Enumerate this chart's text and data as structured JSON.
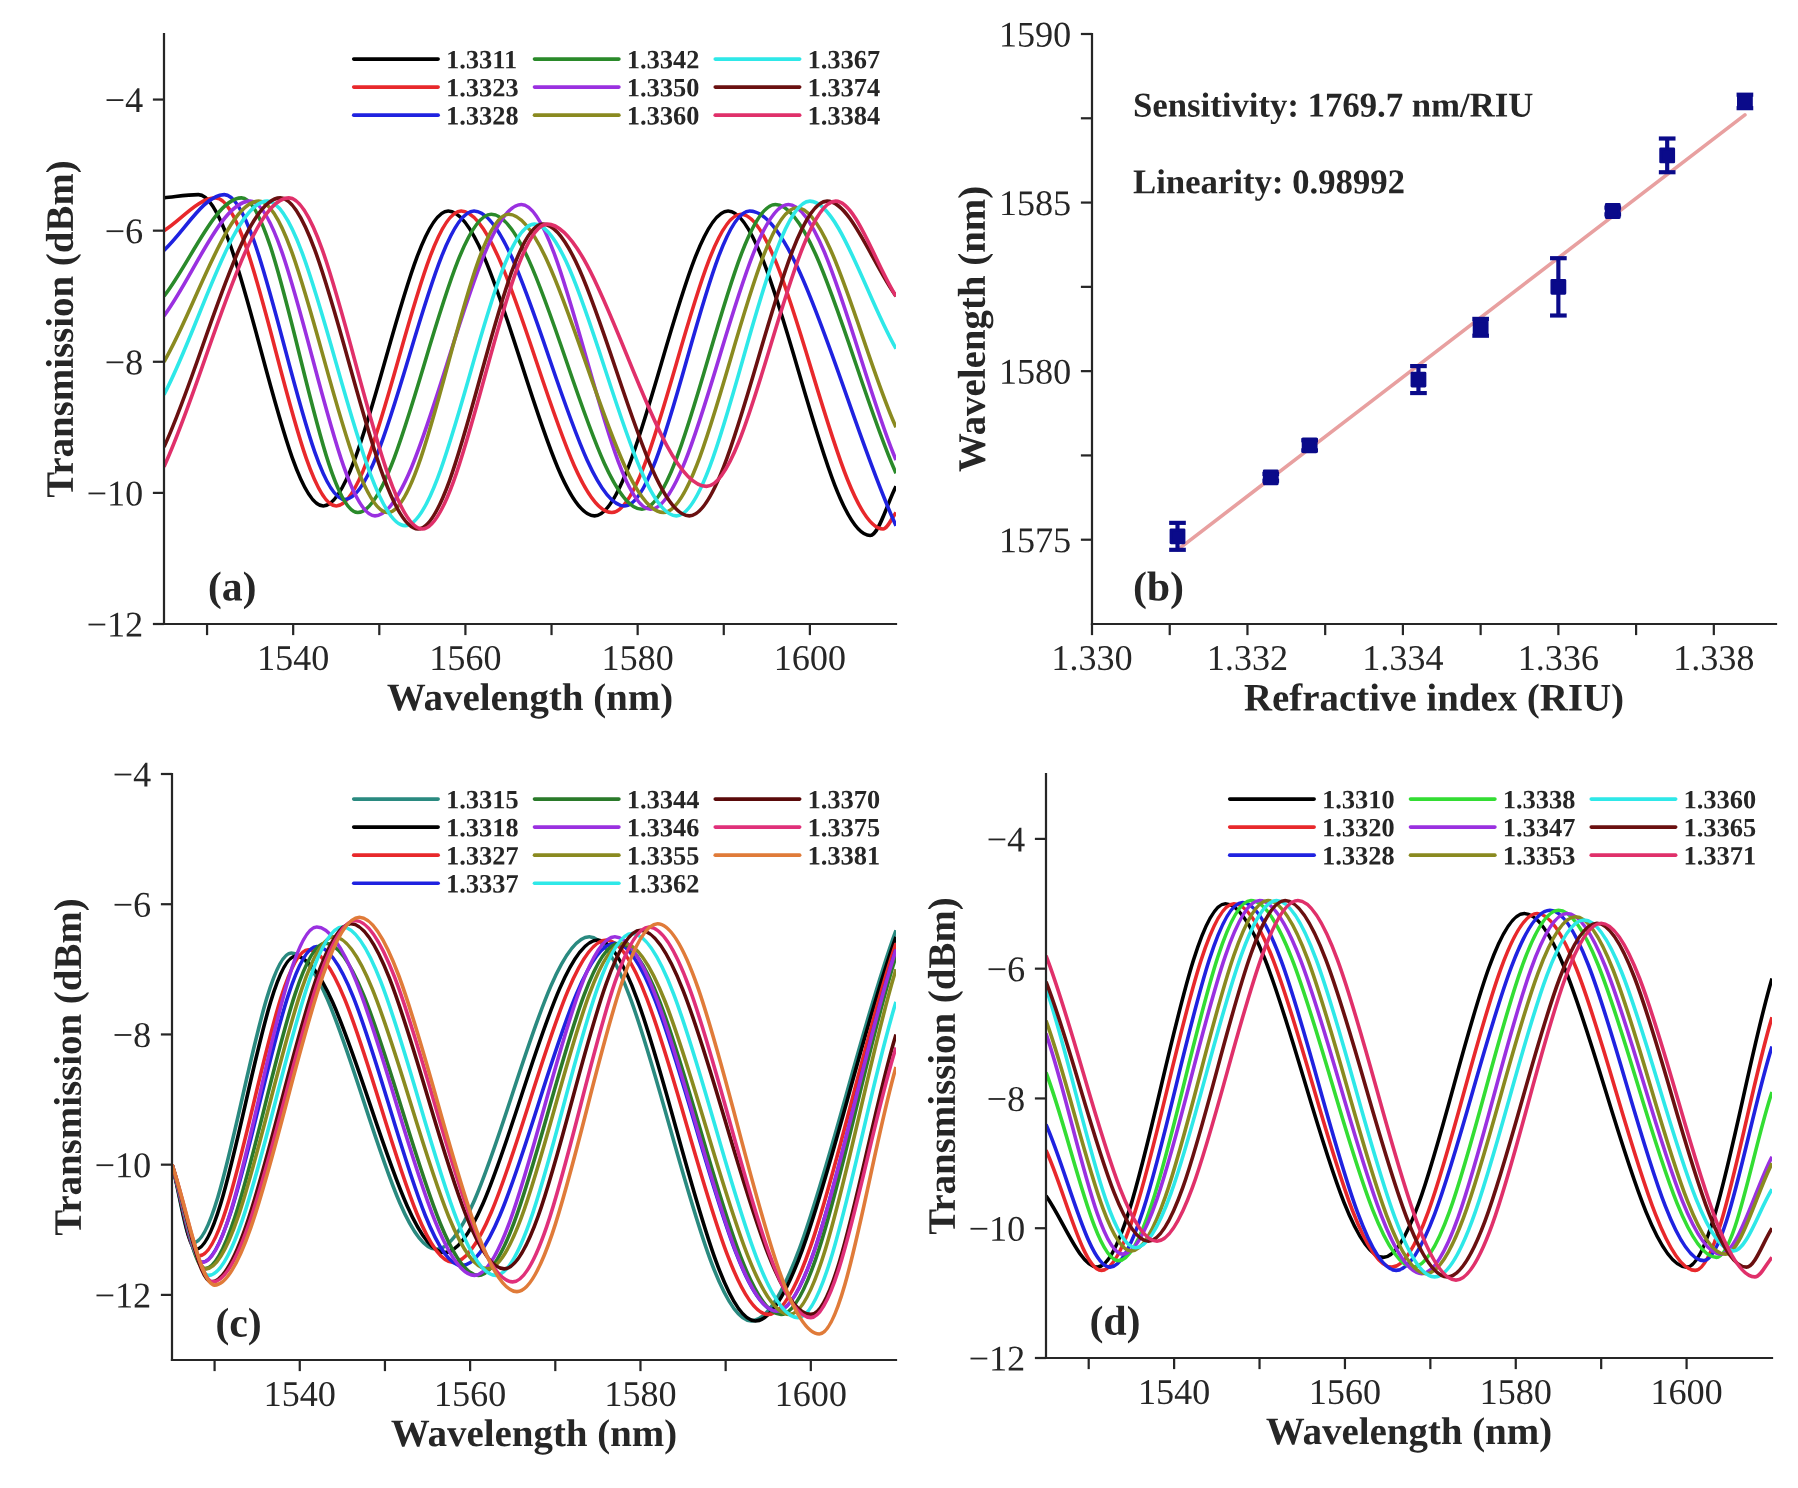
{
  "chart_data": [
    {
      "type": "line",
      "xlabel": "Wavelength (nm)",
      "ylabel": "Transmission (dBm)",
      "xlim": [
        1525,
        1610
      ],
      "ylim": [
        -12,
        -3
      ],
      "xticks": [
        {
          "value": 1530,
          "label": null
        },
        1540,
        {
          "value": 1550,
          "label": null
        },
        1560,
        {
          "value": 1570,
          "label": null
        },
        1580,
        {
          "value": 1590,
          "label": null
        },
        1600
      ],
      "yticks": [
        -12,
        -10,
        -8,
        -6,
        -4
      ],
      "legend": "top right",
      "annotations": [
        "(a)"
      ],
      "series": [
        {
          "name": "1.3311",
          "color": "#000000",
          "x": [
            1525,
            1529,
            1543.5,
            1558,
            1575,
            1590.5,
            1607,
            1610
          ],
          "values": [
            -5.5,
            -5.45,
            -10.2,
            -5.7,
            -10.35,
            -5.7,
            -10.65,
            -9.9
          ]
        },
        {
          "name": "1.3323",
          "color": "#e8282b",
          "x": [
            1525,
            1531,
            1545,
            1559.5,
            1577,
            1592,
            1608.5,
            1610
          ],
          "values": [
            -6.0,
            -5.5,
            -10.2,
            -5.7,
            -10.3,
            -5.75,
            -10.55,
            -10.3
          ]
        },
        {
          "name": "1.3328",
          "color": "#1f22e0",
          "x": [
            1525,
            1532,
            1546,
            1561,
            1578.5,
            1593,
            1610
          ],
          "values": [
            -6.3,
            -5.45,
            -10.1,
            -5.7,
            -10.2,
            -5.7,
            -10.5
          ]
        },
        {
          "name": "1.3342",
          "color": "#2a8a2a",
          "x": [
            1525,
            1534,
            1547.5,
            1563,
            1580.5,
            1596,
            1610
          ],
          "values": [
            -7.0,
            -5.5,
            -10.3,
            -5.75,
            -10.25,
            -5.6,
            -9.7
          ]
        },
        {
          "name": "1.3350",
          "color": "#9a30e0",
          "x": [
            1525,
            1535,
            1549.5,
            1566.5,
            1581.5,
            1597.5,
            1610
          ],
          "values": [
            -7.3,
            -5.55,
            -10.35,
            -5.6,
            -10.25,
            -5.6,
            -9.5
          ]
        },
        {
          "name": "1.3360",
          "color": "#8a8a20",
          "x": [
            1525,
            1536,
            1551,
            1565,
            1583,
            1598.5,
            1610
          ],
          "values": [
            -8.0,
            -5.55,
            -10.3,
            -5.75,
            -10.3,
            -5.65,
            -9.0
          ]
        },
        {
          "name": "1.3367",
          "color": "#2ee8e8",
          "x": [
            1525,
            1537,
            1553,
            1568,
            1584.5,
            1600,
            1610
          ],
          "values": [
            -8.5,
            -5.55,
            -10.5,
            -5.9,
            -10.35,
            -5.55,
            -7.8
          ]
        },
        {
          "name": "1.3374",
          "color": "#6a1010",
          "x": [
            1525,
            1538.5,
            1554.5,
            1569,
            1586,
            1602,
            1610
          ],
          "values": [
            -9.3,
            -5.5,
            -10.55,
            -5.9,
            -10.35,
            -5.55,
            -7.0
          ]
        },
        {
          "name": "1.3384",
          "color": "#e0306a",
          "x": [
            1525,
            1539.5,
            1555,
            1569.5,
            1588,
            1603,
            1610
          ],
          "values": [
            -9.6,
            -5.5,
            -10.55,
            -5.9,
            -9.9,
            -5.55,
            -7.0
          ]
        }
      ]
    },
    {
      "type": "scatter",
      "xlabel": "Refractive index (RIU)",
      "ylabel": "Wavelength (nm)",
      "xlim": [
        1.33,
        1.3388
      ],
      "ylim": [
        1572.5,
        1590
      ],
      "xticks": [
        {
          "value": 1.33,
          "label": "1.330"
        },
        {
          "value": 1.331,
          "label": null
        },
        {
          "value": 1.332,
          "label": "1.332"
        },
        {
          "value": 1.333,
          "label": null
        },
        {
          "value": 1.334,
          "label": "1.334"
        },
        {
          "value": 1.335,
          "label": null
        },
        {
          "value": 1.336,
          "label": "1.336"
        },
        {
          "value": 1.337,
          "label": null
        },
        {
          "value": 1.338,
          "label": "1.338"
        }
      ],
      "yticks": [
        1575,
        {
          "value": 1577.5,
          "label": null
        },
        1580,
        {
          "value": 1582.5,
          "label": null
        },
        1585,
        {
          "value": 1587.5,
          "label": null
        },
        1590
      ],
      "annotations": [
        "Sensitivity: 1769.7 nm/RIU",
        "Linearity: 0.98992",
        "(b)"
      ],
      "series": [
        {
          "type": "line",
          "color": "#e8a0a0",
          "x": [
            1.3311,
            1.3384
          ],
          "values": [
            1574.7,
            1587.6
          ]
        },
        {
          "type": "scatter",
          "color": "#0a0a8a",
          "marker": "square",
          "x": [
            1.3311,
            1.3323,
            1.3328,
            1.3342,
            1.335,
            1.336,
            1.3367,
            1.3374,
            1.3384
          ],
          "values": [
            1575.1,
            1576.85,
            1577.8,
            1579.75,
            1581.3,
            1582.5,
            1584.75,
            1586.4,
            1588.0
          ],
          "errors": [
            0.4,
            0.1,
            0.15,
            0.4,
            0.25,
            0.85,
            0.1,
            0.5,
            0.2
          ]
        }
      ]
    },
    {
      "type": "line",
      "xlabel": "Wavelength (nm)",
      "ylabel": "Transmission (dBm)",
      "xlim": [
        1525,
        1610
      ],
      "ylim": [
        -13,
        -4
      ],
      "xticks": [
        {
          "value": 1530,
          "label": null
        },
        1540,
        {
          "value": 1550,
          "label": null
        },
        1560,
        {
          "value": 1570,
          "label": null
        },
        1580,
        {
          "value": 1590,
          "label": null
        },
        1600
      ],
      "yticks": [
        -12,
        -10,
        -8,
        -6,
        -4
      ],
      "legend": "top right",
      "annotations": [
        "(c)"
      ],
      "series": [
        {
          "name": "1.3315",
          "color": "#2a8a80",
          "x": [
            1525,
            1527.5,
            1539,
            1556,
            1574,
            1593,
            1610
          ],
          "values": [
            -10.0,
            -11.2,
            -6.75,
            -11.3,
            -6.5,
            -12.4,
            -6.4
          ]
        },
        {
          "name": "1.3318",
          "color": "#000000",
          "x": [
            1525,
            1527.8,
            1539.5,
            1557,
            1575,
            1593.5,
            1610
          ],
          "values": [
            -10.0,
            -11.3,
            -6.8,
            -11.35,
            -6.55,
            -12.4,
            -6.5
          ]
        },
        {
          "name": "1.3327",
          "color": "#e8282b",
          "x": [
            1525,
            1528.2,
            1541,
            1558,
            1576,
            1595,
            1610
          ],
          "values": [
            -10.0,
            -11.4,
            -6.7,
            -11.5,
            -6.55,
            -12.3,
            -6.6
          ]
        },
        {
          "name": "1.3337",
          "color": "#1f22e0",
          "x": [
            1525,
            1528.5,
            1542,
            1559,
            1577,
            1596,
            1610
          ],
          "values": [
            -10.0,
            -11.5,
            -6.65,
            -11.55,
            -6.6,
            -12.25,
            -6.7
          ]
        },
        {
          "name": "1.3344",
          "color": "#2a7a2a",
          "x": [
            1525,
            1528.8,
            1543,
            1561,
            1577.5,
            1596.5,
            1610
          ],
          "values": [
            -10.0,
            -11.6,
            -6.6,
            -11.7,
            -6.6,
            -12.3,
            -6.8
          ]
        },
        {
          "name": "1.3346",
          "color": "#9a30e0",
          "x": [
            1525,
            1528.6,
            1542,
            1560.5,
            1577,
            1596,
            1610
          ],
          "values": [
            -10.0,
            -11.5,
            -6.35,
            -11.7,
            -6.5,
            -12.25,
            -6.7
          ]
        },
        {
          "name": "1.3355",
          "color": "#8a8a20",
          "x": [
            1525,
            1529,
            1544,
            1562,
            1578,
            1597.5,
            1610
          ],
          "values": [
            -10.0,
            -11.6,
            -6.5,
            -11.6,
            -6.6,
            -12.3,
            -7.0
          ]
        },
        {
          "name": "1.3362",
          "color": "#2ee8e8",
          "x": [
            1525,
            1529.3,
            1545,
            1563,
            1579,
            1598.5,
            1610
          ],
          "values": [
            -10.0,
            -11.7,
            -6.35,
            -11.7,
            -6.45,
            -12.35,
            -7.5
          ]
        },
        {
          "name": "1.3370",
          "color": "#5a0a0a",
          "x": [
            1525,
            1529.6,
            1546,
            1564,
            1580,
            1600,
            1610
          ],
          "values": [
            -10.0,
            -11.8,
            -6.3,
            -11.6,
            -6.4,
            -12.3,
            -8.0
          ]
        },
        {
          "name": "1.3375",
          "color": "#e0307a",
          "x": [
            1525,
            1529.8,
            1546.5,
            1565,
            1581,
            1600,
            1610
          ],
          "values": [
            -10.0,
            -11.8,
            -6.25,
            -11.8,
            -6.35,
            -12.35,
            -8.2
          ]
        },
        {
          "name": "1.3381",
          "color": "#e07b39",
          "x": [
            1525,
            1530,
            1547,
            1565.5,
            1582,
            1601,
            1610
          ],
          "values": [
            -10.0,
            -11.85,
            -6.2,
            -11.95,
            -6.3,
            -12.6,
            -8.5
          ]
        }
      ]
    },
    {
      "type": "line",
      "xlabel": "Wavelength (nm)",
      "ylabel": "Transmission (dBm)",
      "xlim": [
        1525,
        1610
      ],
      "ylim": [
        -12,
        -3
      ],
      "xticks": [
        {
          "value": 1530,
          "label": null
        },
        1540,
        {
          "value": 1550,
          "label": null
        },
        1560,
        {
          "value": 1570,
          "label": null
        },
        1580,
        {
          "value": 1590,
          "label": null
        },
        1600
      ],
      "yticks": [
        -12,
        -10,
        -8,
        -6,
        -4
      ],
      "legend": "top right",
      "annotations": [
        "(d)"
      ],
      "series": [
        {
          "name": "1.3310",
          "color": "#000000",
          "x": [
            1525,
            1531,
            1546,
            1564.5,
            1581,
            1600,
            1610
          ],
          "values": [
            -9.5,
            -10.6,
            -5.0,
            -10.45,
            -5.15,
            -10.6,
            -6.15
          ]
        },
        {
          "name": "1.3320",
          "color": "#e8282b",
          "x": [
            1525,
            1531.5,
            1547,
            1565.5,
            1582.5,
            1601,
            1610
          ],
          "values": [
            -8.8,
            -10.65,
            -5.0,
            -10.6,
            -5.15,
            -10.65,
            -6.75
          ]
        },
        {
          "name": "1.3328",
          "color": "#1f22e0",
          "x": [
            1525,
            1532.5,
            1548,
            1566,
            1584,
            1602,
            1610
          ],
          "values": [
            -8.4,
            -10.6,
            -4.98,
            -10.65,
            -5.1,
            -10.5,
            -7.2
          ]
        },
        {
          "name": "1.3338",
          "color": "#33dd33",
          "x": [
            1525,
            1533.5,
            1549,
            1568,
            1585,
            1603.5,
            1610
          ],
          "values": [
            -7.6,
            -10.5,
            -4.95,
            -10.6,
            -5.1,
            -10.45,
            -7.9
          ]
        },
        {
          "name": "1.3347",
          "color": "#9a30e0",
          "x": [
            1525,
            1534,
            1550,
            1569,
            1586,
            1604,
            1610
          ],
          "values": [
            -7.0,
            -10.4,
            -4.95,
            -10.7,
            -5.15,
            -10.4,
            -8.9
          ]
        },
        {
          "name": "1.3353",
          "color": "#8a8a20",
          "x": [
            1525,
            1535,
            1551,
            1569.5,
            1587,
            1604.5,
            1610
          ],
          "values": [
            -6.8,
            -10.35,
            -4.95,
            -10.7,
            -5.2,
            -10.4,
            -9.0
          ]
        },
        {
          "name": "1.3360",
          "color": "#2ee8e8",
          "x": [
            1525,
            1535.5,
            1552,
            1570.5,
            1588,
            1605.5,
            1610
          ],
          "values": [
            -6.3,
            -10.3,
            -4.95,
            -10.75,
            -5.25,
            -10.35,
            -9.4
          ]
        },
        {
          "name": "1.3365",
          "color": "#6a1010",
          "x": [
            1525,
            1537,
            1553,
            1572,
            1589.5,
            1607,
            1610
          ],
          "values": [
            -6.2,
            -10.2,
            -4.95,
            -10.75,
            -5.3,
            -10.6,
            -10.0
          ]
        },
        {
          "name": "1.3371",
          "color": "#e0306a",
          "x": [
            1525,
            1538,
            1554.5,
            1573,
            1590,
            1608,
            1610
          ],
          "values": [
            -5.8,
            -10.2,
            -4.95,
            -10.8,
            -5.3,
            -10.75,
            -10.45
          ]
        }
      ]
    }
  ]
}
